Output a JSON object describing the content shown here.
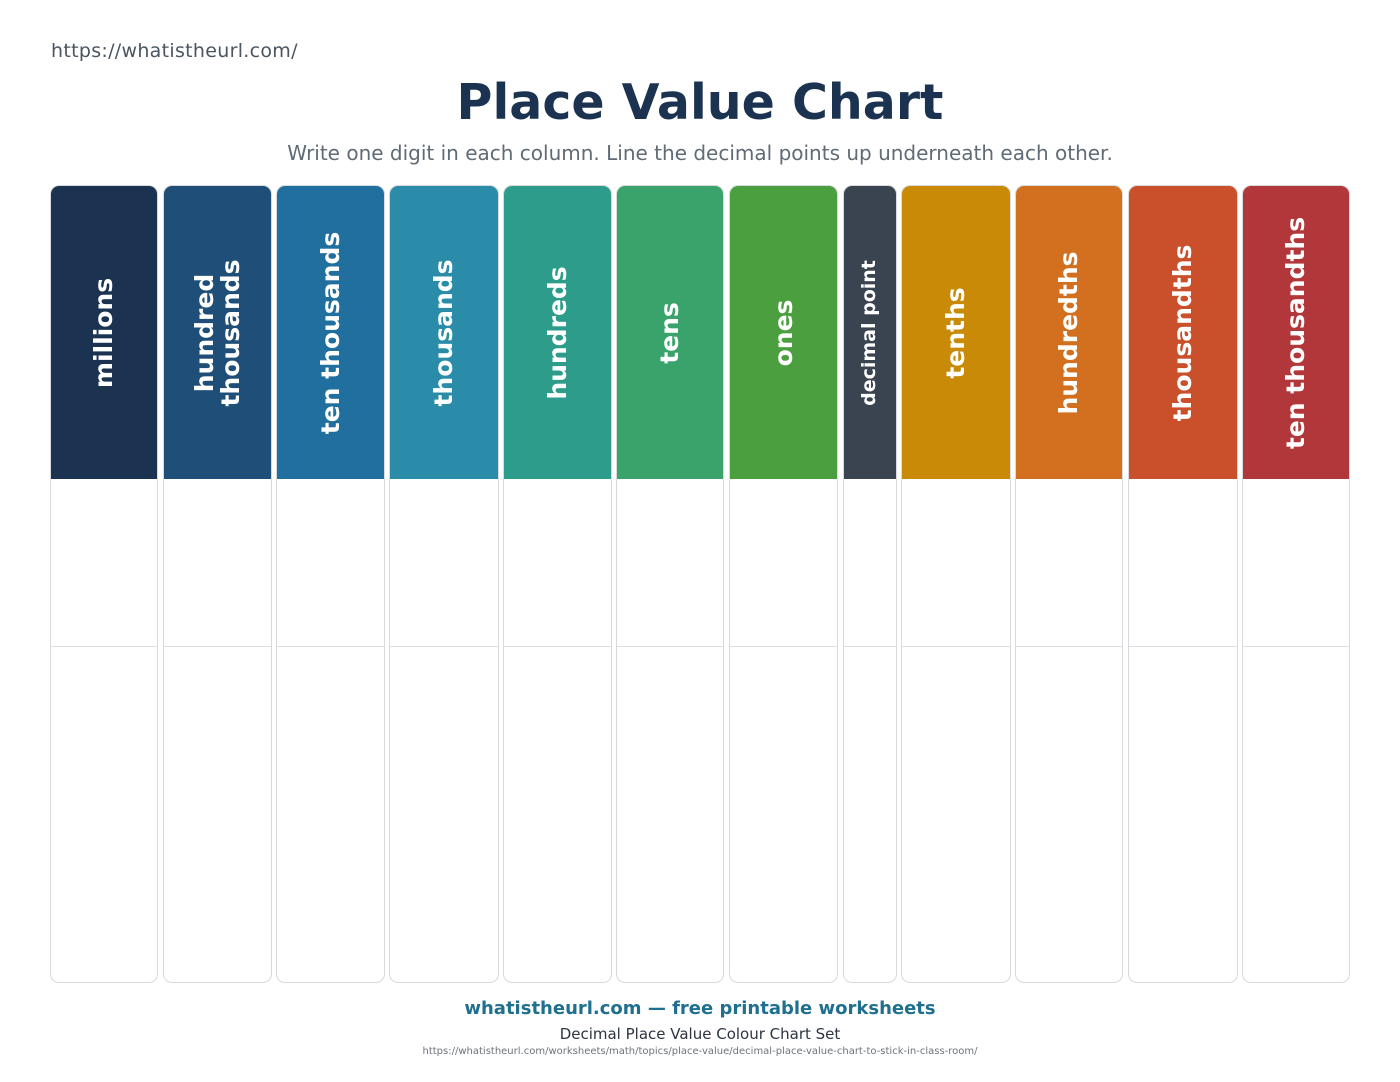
{
  "header": {
    "url": "https://whatistheurl.com/",
    "title": "Place Value Chart",
    "subtitle": "Write one digit in each column. Line the decimal points up underneath each other."
  },
  "columns": [
    {
      "label": "millions",
      "color": "#1b3350"
    },
    {
      "label": "hundred\nthousands",
      "color": "#1f4f78"
    },
    {
      "label": "ten thousands",
      "color": "#216f9f"
    },
    {
      "label": "thousands",
      "color": "#2a8ca8"
    },
    {
      "label": "hundreds",
      "color": "#2e9c8b"
    },
    {
      "label": "tens",
      "color": "#3aa26b"
    },
    {
      "label": "ones",
      "color": "#4c9f3e"
    },
    {
      "label": "decimal point",
      "color": "#3a4350"
    },
    {
      "label": "tenths",
      "color": "#c98a08"
    },
    {
      "label": "hundredths",
      "color": "#d2701f"
    },
    {
      "label": "thousandths",
      "color": "#c9502b"
    },
    {
      "label": "ten thousandths",
      "color": "#b2373a"
    }
  ],
  "footer": {
    "brand": "whatistheurl.com — free printable worksheets",
    "set_name": "Decimal Place Value Colour Chart Set",
    "url": "https://whatistheurl.com/worksheets/math/topics/place-value/decimal-place-value-chart-to-stick-in-class-room/"
  }
}
